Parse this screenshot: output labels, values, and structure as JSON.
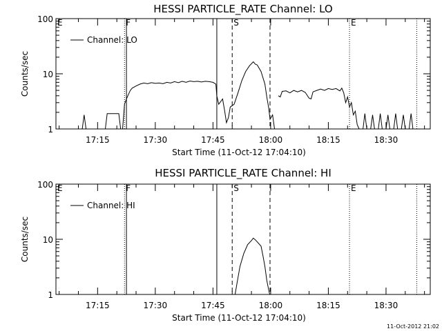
{
  "footer_timestamp": "11-Oct-2012 21:02",
  "chart_data": [
    {
      "type": "line",
      "title": "HESSI PARTICLE_RATE Channel: LO",
      "xlabel": "Start Time (11-Oct-12 17:04:10)",
      "ylabel": "Counts/sec",
      "y_scale": "log",
      "ylim": [
        1,
        100
      ],
      "xlim": [
        "17:04:10",
        "18:41:30"
      ],
      "y_ticks": [
        {
          "v": 1,
          "label": "1"
        },
        {
          "v": 10,
          "label": "10"
        },
        {
          "v": 100,
          "label": "100"
        }
      ],
      "x_ticks": [
        "17:15",
        "17:30",
        "17:45",
        "18:00",
        "18:15",
        "18:30"
      ],
      "legend": {
        "label": "Channel: LO",
        "placement": "top-left"
      },
      "markers": [
        {
          "t": "17:04:10",
          "label": "E",
          "style": "none"
        },
        {
          "t": "17:22:00",
          "label": "F",
          "style": "dotted"
        },
        {
          "t": "17:22:30",
          "label": "",
          "style": "solid"
        },
        {
          "t": "17:46:00",
          "label": "",
          "style": "solid"
        },
        {
          "t": "17:50:00",
          "label": "S",
          "style": "dashed"
        },
        {
          "t": "17:59:50",
          "label": "",
          "style": "dashed"
        },
        {
          "t": "18:20:30",
          "label": "E",
          "style": "dotted"
        },
        {
          "t": "18:38:00",
          "label": "",
          "style": "dotted"
        }
      ],
      "series": [
        {
          "name": "Channel: LO",
          "segments": [
            [
              [
                "17:11:00",
                0.9
              ],
              [
                "17:11:30",
                1.8
              ],
              [
                "17:12:00",
                0.9
              ]
            ],
            [
              [
                "17:16:00",
                1.0
              ],
              [
                "17:17:00",
                1.0
              ],
              [
                "17:17:30",
                1.9
              ],
              [
                "17:20:30",
                1.9
              ],
              [
                "17:21:00",
                1.0
              ],
              [
                "17:21:30",
                1.0
              ],
              [
                "17:22:00",
                2.8
              ],
              [
                "17:22:30",
                3.5
              ],
              [
                "17:23:00",
                4.2
              ],
              [
                "17:23:30",
                5.0
              ],
              [
                "17:24:00",
                5.5
              ],
              [
                "17:25:00",
                6.0
              ],
              [
                "17:26:00",
                6.5
              ],
              [
                "17:27:00",
                6.8
              ],
              [
                "17:28:00",
                6.6
              ],
              [
                "17:29:00",
                6.9
              ],
              [
                "17:30:00",
                6.7
              ],
              [
                "17:31:00",
                6.8
              ],
              [
                "17:32:00",
                6.6
              ],
              [
                "17:33:00",
                7.0
              ],
              [
                "17:34:00",
                6.8
              ],
              [
                "17:35:00",
                7.2
              ],
              [
                "17:36:00",
                6.9
              ],
              [
                "17:37:00",
                7.3
              ],
              [
                "17:38:00",
                7.0
              ],
              [
                "17:39:00",
                7.4
              ],
              [
                "17:40:00",
                7.2
              ],
              [
                "17:41:00",
                7.3
              ],
              [
                "17:42:00",
                7.1
              ],
              [
                "17:43:00",
                7.3
              ],
              [
                "17:44:00",
                7.2
              ],
              [
                "17:45:00",
                7.0
              ],
              [
                "17:45:45",
                6.5
              ],
              [
                "17:46:00",
                4.0
              ],
              [
                "17:46:30",
                2.8
              ],
              [
                "17:47:30",
                3.5
              ],
              [
                "17:48:00",
                2.2
              ],
              [
                "17:48:30",
                1.3
              ],
              [
                "17:49:00",
                1.6
              ],
              [
                "17:49:30",
                2.5
              ],
              [
                "17:50:30",
                2.8
              ],
              [
                "17:51:30",
                4.5
              ],
              [
                "17:52:30",
                7.5
              ],
              [
                "17:53:30",
                11.0
              ],
              [
                "17:54:30",
                14.0
              ],
              [
                "17:55:30",
                16.5
              ],
              [
                "17:56:00",
                15.0
              ],
              [
                "17:56:30",
                14.5
              ],
              [
                "17:57:30",
                11.0
              ],
              [
                "17:58:30",
                6.5
              ],
              [
                "17:59:00",
                3.8
              ],
              [
                "17:59:30",
                2.4
              ],
              [
                "17:59:50",
                1.5
              ],
              [
                "18:00:30",
                1.8
              ],
              [
                "18:01:00",
                0.9
              ]
            ],
            [
              [
                "18:02:00",
                4.0
              ],
              [
                "18:02:30",
                3.8
              ],
              [
                "18:03:00",
                4.8
              ],
              [
                "18:04:00",
                4.9
              ],
              [
                "18:05:00",
                4.5
              ],
              [
                "18:06:00",
                5.0
              ],
              [
                "18:07:00",
                4.7
              ],
              [
                "18:08:00",
                5.0
              ],
              [
                "18:09:00",
                4.6
              ],
              [
                "18:10:00",
                3.6
              ],
              [
                "18:10:30",
                3.5
              ],
              [
                "18:11:00",
                4.7
              ],
              [
                "18:12:00",
                5.0
              ],
              [
                "18:13:00",
                5.3
              ],
              [
                "18:14:00",
                5.0
              ],
              [
                "18:15:00",
                5.4
              ],
              [
                "18:16:00",
                5.2
              ],
              [
                "18:17:00",
                5.4
              ],
              [
                "18:18:00",
                4.9
              ],
              [
                "18:18:30",
                5.5
              ],
              [
                "18:19:00",
                4.5
              ],
              [
                "18:19:30",
                3.0
              ],
              [
                "18:20:00",
                3.8
              ],
              [
                "18:20:30",
                2.5
              ],
              [
                "18:21:00",
                3.0
              ],
              [
                "18:21:30",
                1.8
              ],
              [
                "18:22:00",
                2.1
              ],
              [
                "18:22:30",
                1.2
              ],
              [
                "18:23:00",
                0.9
              ]
            ],
            [
              [
                "18:24:00",
                0.9
              ],
              [
                "18:24:30",
                1.9
              ],
              [
                "18:25:00",
                0.9
              ]
            ],
            [
              [
                "18:26:00",
                0.9
              ],
              [
                "18:26:30",
                1.8
              ],
              [
                "18:27:00",
                0.9
              ]
            ],
            [
              [
                "18:28:00",
                0.9
              ],
              [
                "18:28:30",
                1.9
              ],
              [
                "18:29:00",
                0.9
              ]
            ],
            [
              [
                "18:30:00",
                0.9
              ],
              [
                "18:30:30",
                1.8
              ],
              [
                "18:31:00",
                0.9
              ]
            ],
            [
              [
                "18:32:00",
                0.9
              ],
              [
                "18:32:30",
                1.9
              ],
              [
                "18:33:00",
                0.9
              ]
            ],
            [
              [
                "18:34:00",
                0.9
              ],
              [
                "18:34:30",
                1.8
              ],
              [
                "18:35:00",
                0.9
              ]
            ],
            [
              [
                "18:36:00",
                0.9
              ],
              [
                "18:36:30",
                1.9
              ],
              [
                "18:37:00",
                0.9
              ]
            ]
          ]
        }
      ]
    },
    {
      "type": "line",
      "title": "HESSI PARTICLE_RATE Channel: HI",
      "xlabel": "Start Time (11-Oct-12 17:04:10)",
      "ylabel": "Counts/sec",
      "y_scale": "log",
      "ylim": [
        1,
        100
      ],
      "xlim": [
        "17:04:10",
        "18:41:30"
      ],
      "y_ticks": [
        {
          "v": 1,
          "label": "1"
        },
        {
          "v": 10,
          "label": "10"
        },
        {
          "v": 100,
          "label": "100"
        }
      ],
      "x_ticks": [
        "17:15",
        "17:30",
        "17:45",
        "18:00",
        "18:15",
        "18:30"
      ],
      "legend": {
        "label": "Channel: HI",
        "placement": "top-left"
      },
      "markers": [
        {
          "t": "17:04:10",
          "label": "E",
          "style": "none"
        },
        {
          "t": "17:22:00",
          "label": "F",
          "style": "dotted"
        },
        {
          "t": "17:22:30",
          "label": "",
          "style": "solid"
        },
        {
          "t": "17:46:00",
          "label": "",
          "style": "solid"
        },
        {
          "t": "17:50:00",
          "label": "S",
          "style": "dashed"
        },
        {
          "t": "17:59:50",
          "label": "",
          "style": "dashed"
        },
        {
          "t": "18:20:30",
          "label": "E",
          "style": "dotted"
        },
        {
          "t": "18:38:00",
          "label": "",
          "style": "dotted"
        }
      ],
      "series": [
        {
          "name": "Channel: HI",
          "segments": [
            [
              [
                "17:50:45",
                0.9
              ],
              [
                "17:51:15",
                1.6
              ],
              [
                "17:52:00",
                3.2
              ],
              [
                "17:53:00",
                5.5
              ],
              [
                "17:54:00",
                8.0
              ],
              [
                "17:55:00",
                9.5
              ],
              [
                "17:55:30",
                10.5
              ],
              [
                "17:56:00",
                9.8
              ],
              [
                "17:56:30",
                9.0
              ],
              [
                "17:57:30",
                7.5
              ],
              [
                "17:58:00",
                5.0
              ],
              [
                "17:58:30",
                3.2
              ],
              [
                "17:59:00",
                1.8
              ],
              [
                "17:59:30",
                1.2
              ],
              [
                "17:59:45",
                0.9
              ]
            ]
          ]
        }
      ]
    }
  ]
}
